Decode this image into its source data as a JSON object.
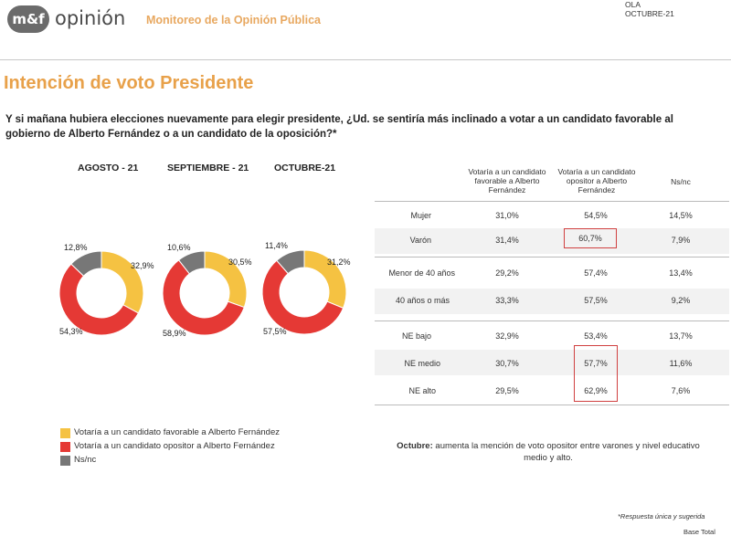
{
  "header": {
    "logo_badge": "m&f",
    "logo_text": "opinión",
    "subtitle": "Monitoreo de la Opinión Pública",
    "ola_label": "OLA",
    "ola_value": "OCTUBRE-21"
  },
  "title": "Intención de voto Presidente",
  "question": "Y si mañana hubiera elecciones nuevamente para elegir presidente, ¿Ud. se sentiría más inclinado a votar a un candidato favorable al gobierno de Alberto Fernández o a un candidato de la oposición?*",
  "colors": {
    "favorable": "#f5c242",
    "opositor": "#e53935",
    "nsnc": "#777777"
  },
  "chart_data": {
    "type": "pie",
    "variant": "donut",
    "charts": [
      {
        "month": "AGOSTO - 21",
        "values": {
          "favorable": 32.9,
          "opositor": 54.3,
          "nsnc": 12.8
        },
        "labels": {
          "favorable": "32,9%",
          "opositor": "54,3%",
          "nsnc": "12,8%"
        }
      },
      {
        "month": "SEPTIEMBRE - 21",
        "values": {
          "favorable": 30.5,
          "opositor": 58.9,
          "nsnc": 10.6
        },
        "labels": {
          "favorable": "30,5%",
          "opositor": "58,9%",
          "nsnc": "10,6%"
        }
      },
      {
        "month": "OCTUBRE-21",
        "values": {
          "favorable": 31.2,
          "opositor": 57.5,
          "nsnc": 11.4
        },
        "labels": {
          "favorable": "31,2%",
          "opositor": "57,5%",
          "nsnc": "11,4%"
        }
      }
    ],
    "legend": [
      {
        "key": "favorable",
        "label": "Votaría a un candidato favorable a Alberto Fernández"
      },
      {
        "key": "opositor",
        "label": "Votaría a un candidato opositor a Alberto Fernández"
      },
      {
        "key": "nsnc",
        "label": "Ns/nc"
      }
    ]
  },
  "table": {
    "headers": [
      "Votaría a un candidato favorable a Alberto Fernández",
      "Votaría a un candidato opositor a Alberto Fernández",
      "Ns/nc"
    ],
    "rows": [
      {
        "label": "Mujer",
        "fav": "31,0%",
        "opo": "54,5%",
        "ns": "14,5%"
      },
      {
        "label": "Varón",
        "fav": "31,4%",
        "opo": "60,7%",
        "ns": "7,9%"
      },
      {
        "label": "Menor de 40 años",
        "fav": "29,2%",
        "opo": "57,4%",
        "ns": "13,4%"
      },
      {
        "label": "40 años o más",
        "fav": "33,3%",
        "opo": "57,5%",
        "ns": "9,2%"
      },
      {
        "label": "NE bajo",
        "fav": "32,9%",
        "opo": "53,4%",
        "ns": "13,7%"
      },
      {
        "label": "NE medio",
        "fav": "30,7%",
        "opo": "57,7%",
        "ns": "11,6%"
      },
      {
        "label": "NE alto",
        "fav": "29,5%",
        "opo": "62,9%",
        "ns": "7,6%"
      }
    ]
  },
  "note": {
    "bold": "Octubre:",
    "text": " aumenta la mención de voto opositor entre varones y nivel educativo medio y alto."
  },
  "footnote": "*Respuesta única y sugerida",
  "base": "Base Total"
}
